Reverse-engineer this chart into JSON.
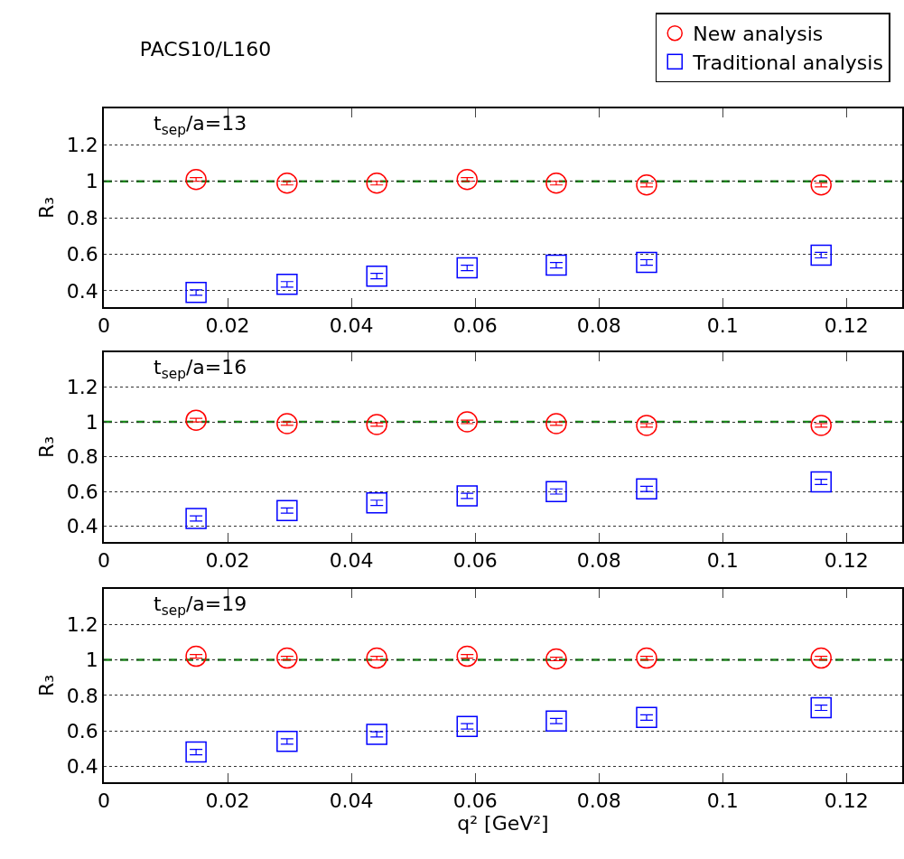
{
  "chart_data": [
    {
      "type": "scatter",
      "title": "PACS10/L160",
      "ylabel": "R₃",
      "annotations": [
        "t$_{sep}$/a=13"
      ],
      "x": [
        0.0149,
        0.0296,
        0.0441,
        0.0587,
        0.0731,
        0.0877,
        0.1159
      ],
      "series": [
        {
          "name": "New analysis",
          "color": "#ff0000",
          "marker": "circle",
          "values": [
            1.01,
            0.99,
            0.99,
            1.01,
            0.99,
            0.98,
            0.98
          ],
          "errors": [
            0.01,
            0.01,
            0.01,
            0.01,
            0.01,
            0.01,
            0.01
          ]
        },
        {
          "name": "Traditional analysis",
          "color": "#0000ff",
          "marker": "square",
          "values": [
            0.39,
            0.435,
            0.48,
            0.525,
            0.54,
            0.555,
            0.595
          ],
          "errors": [
            0.015,
            0.015,
            0.015,
            0.015,
            0.015,
            0.015,
            0.015
          ]
        }
      ],
      "xlim": [
        0,
        0.129
      ],
      "xticks": [
        0,
        0.02,
        0.04,
        0.06,
        0.08,
        0.1,
        0.12
      ],
      "ylim": [
        0.31,
        1.4
      ],
      "yticks": [
        0.4,
        0.6,
        0.8,
        1,
        1.2
      ],
      "ref_lines": [
        {
          "axis": "y",
          "value": 1,
          "color": "#1a8c1a",
          "line_style": "dashed"
        }
      ],
      "grid": "y",
      "legend": "top right"
    },
    {
      "type": "scatter",
      "ylabel": "R₃",
      "annotations": [
        "t$_{sep}$/a=16"
      ],
      "x": [
        0.0149,
        0.0296,
        0.0441,
        0.0587,
        0.0731,
        0.0877,
        0.1159
      ],
      "series": [
        {
          "color": "#ff0000",
          "marker": "circle",
          "values": [
            1.01,
            0.99,
            0.985,
            1.0,
            0.99,
            0.98,
            0.98
          ],
          "errors": [
            0.01,
            0.01,
            0.01,
            0.01,
            0.01,
            0.01,
            0.01
          ]
        },
        {
          "color": "#0000ff",
          "marker": "square",
          "values": [
            0.445,
            0.49,
            0.535,
            0.575,
            0.6,
            0.615,
            0.655
          ],
          "errors": [
            0.015,
            0.015,
            0.015,
            0.015,
            0.015,
            0.015,
            0.015
          ]
        }
      ],
      "xlim": [
        0,
        0.129
      ],
      "xticks": [
        0,
        0.02,
        0.04,
        0.06,
        0.08,
        0.1,
        0.12
      ],
      "ylim": [
        0.31,
        1.4
      ],
      "yticks": [
        0.4,
        0.6,
        0.8,
        1,
        1.2
      ],
      "ref_lines": [
        {
          "axis": "y",
          "value": 1,
          "color": "#1a8c1a",
          "line_style": "dashed"
        }
      ],
      "grid": "y"
    },
    {
      "type": "scatter",
      "xlabel": "q² [GeV²]",
      "ylabel": "R₃",
      "annotations": [
        "t$_{sep}$/a=19"
      ],
      "x": [
        0.0149,
        0.0296,
        0.0441,
        0.0587,
        0.0731,
        0.0877,
        0.1159
      ],
      "series": [
        {
          "color": "#ff0000",
          "marker": "circle",
          "values": [
            1.02,
            1.01,
            1.01,
            1.02,
            1.005,
            1.01,
            1.01
          ],
          "errors": [
            0.01,
            0.01,
            0.01,
            0.01,
            0.01,
            0.01,
            0.01
          ]
        },
        {
          "color": "#0000ff",
          "marker": "square",
          "values": [
            0.48,
            0.54,
            0.58,
            0.625,
            0.655,
            0.675,
            0.73
          ],
          "errors": [
            0.015,
            0.015,
            0.015,
            0.015,
            0.015,
            0.015,
            0.015
          ]
        }
      ],
      "xlim": [
        0,
        0.129
      ],
      "xticks": [
        0,
        0.02,
        0.04,
        0.06,
        0.08,
        0.1,
        0.12
      ],
      "ylim": [
        0.31,
        1.4
      ],
      "yticks": [
        0.4,
        0.6,
        0.8,
        1,
        1.2
      ],
      "ref_lines": [
        {
          "axis": "y",
          "value": 1,
          "color": "#1a8c1a",
          "line_style": "dashed"
        }
      ],
      "grid": "y"
    }
  ]
}
